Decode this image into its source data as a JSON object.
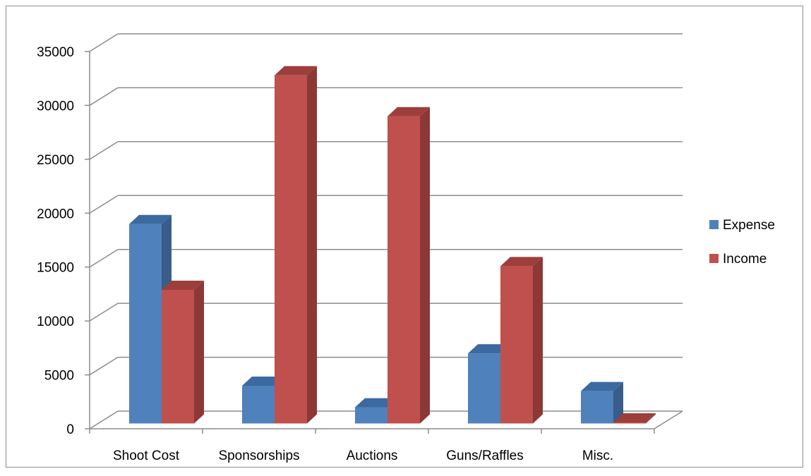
{
  "chart_data": {
    "type": "bar",
    "style": "3d-clustered-column",
    "categories": [
      "Shoot Cost",
      "Sponsorships",
      "Auctions",
      "Guns/Raffles",
      "Misc."
    ],
    "series": [
      {
        "name": "Expense",
        "values": [
          18500,
          3500,
          1500,
          6500,
          3000
        ],
        "color": "#4f81bd",
        "side_color": "#385d8a",
        "top_color": "#3c6aa0"
      },
      {
        "name": "Income",
        "values": [
          12400,
          32300,
          28500,
          14600,
          100
        ],
        "color": "#c0504d",
        "side_color": "#8c3836",
        "top_color": "#9e3e3b"
      }
    ],
    "y_ticks": [
      "0",
      "5000",
      "10000",
      "15000",
      "20000",
      "25000",
      "30000",
      "35000"
    ],
    "ylim": [
      0,
      35000
    ],
    "grid": true,
    "legend_position": "right",
    "title": "",
    "xlabel": "",
    "ylabel": ""
  }
}
